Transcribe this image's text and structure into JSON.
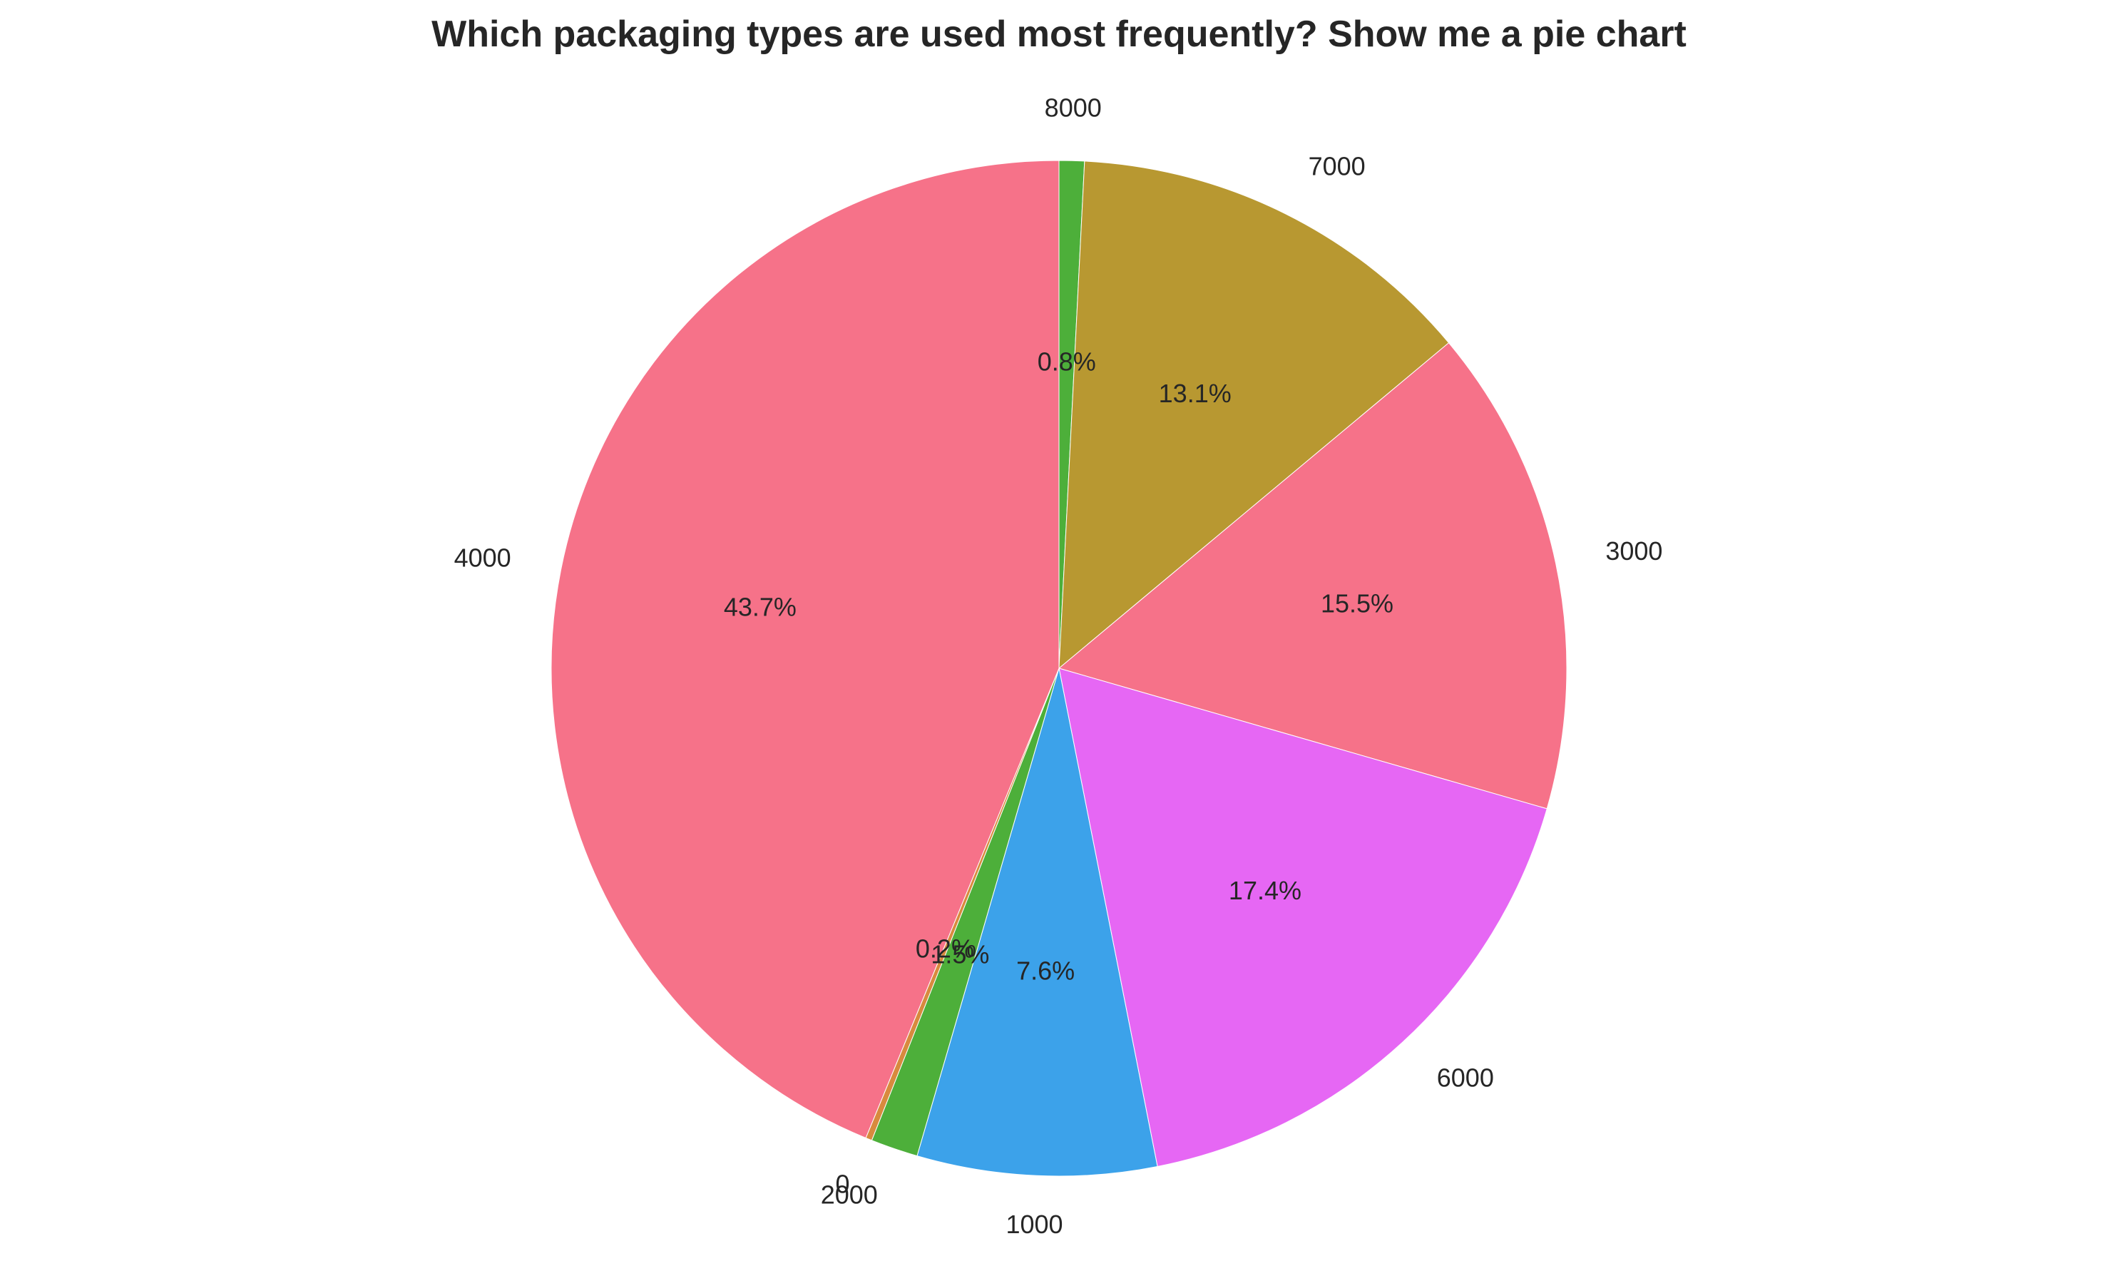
{
  "chart_data": {
    "type": "pie",
    "title": "Which packaging types are used most frequently? Show me a pie chart",
    "start_angle_deg": 90,
    "direction": "clockwise",
    "slices": [
      {
        "label": "8000",
        "value": 0.8,
        "pct_label": "0.8%",
        "color": "#4daf3a"
      },
      {
        "label": "7000",
        "value": 13.1,
        "pct_label": "13.1%",
        "color": "#b89831"
      },
      {
        "label": "3000",
        "value": 15.5,
        "pct_label": "15.5%",
        "color": "#f67289"
      },
      {
        "label": "6000",
        "value": 17.4,
        "pct_label": "17.4%",
        "color": "#e667f4"
      },
      {
        "label": "1000",
        "value": 7.6,
        "pct_label": "7.6%",
        "color": "#3ca2ea"
      },
      {
        "label": "2000",
        "value": 1.5,
        "pct_label": "1.5%",
        "color": "#4daf3a"
      },
      {
        "label": "0",
        "value": 0.2,
        "pct_label": "0.2%",
        "color": "#d88a3e"
      },
      {
        "label": "4000",
        "value": 43.7,
        "pct_label": "43.7%",
        "color": "#f67289"
      }
    ]
  }
}
